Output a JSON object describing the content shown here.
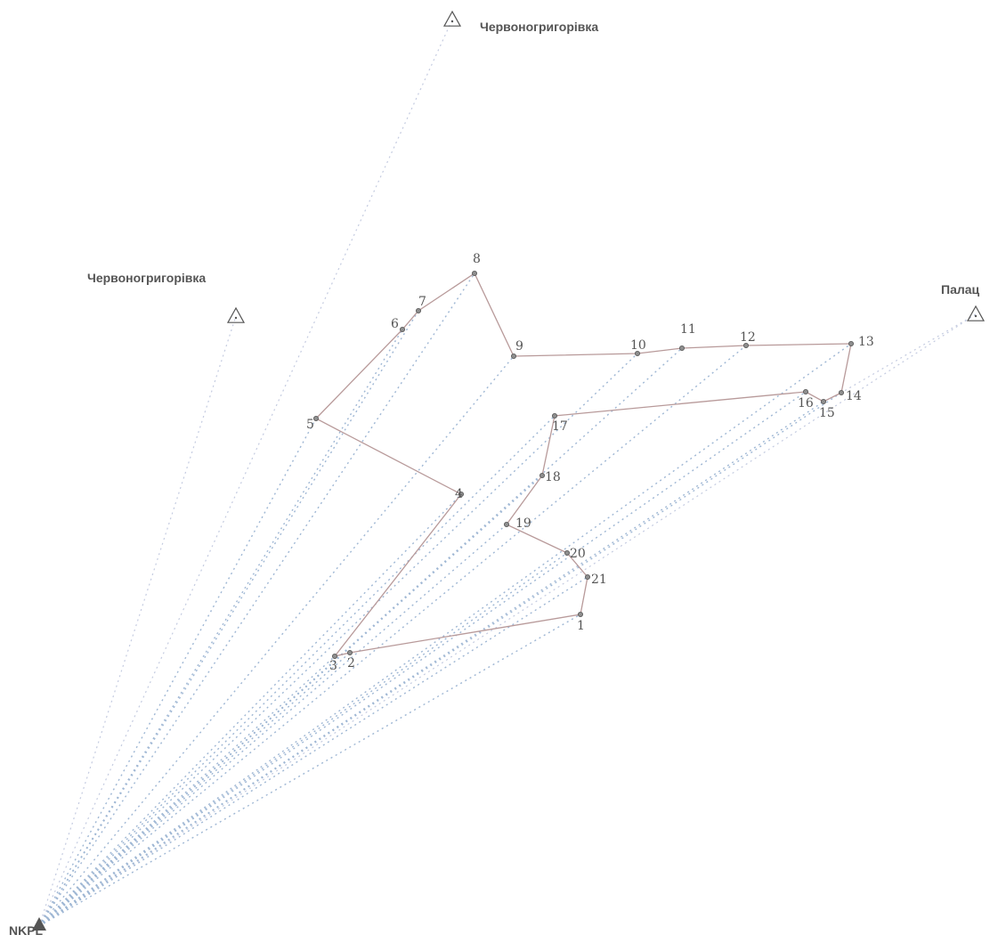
{
  "base_station": {
    "label": "NKPL"
  },
  "control_points": [
    {
      "id": "c1",
      "label": "Червоногригорівка"
    },
    {
      "id": "c2",
      "label": "Червоногригорівка"
    },
    {
      "id": "c3",
      "label": "Палац"
    }
  ],
  "traverse_points": [
    {
      "id": "p1",
      "label": "1"
    },
    {
      "id": "p2",
      "label": "2"
    },
    {
      "id": "p3",
      "label": "3"
    },
    {
      "id": "p4",
      "label": "4"
    },
    {
      "id": "p5",
      "label": "5"
    },
    {
      "id": "p6",
      "label": "6"
    },
    {
      "id": "p7",
      "label": "7"
    },
    {
      "id": "p8",
      "label": "8"
    },
    {
      "id": "p9",
      "label": "9"
    },
    {
      "id": "p10",
      "label": "10"
    },
    {
      "id": "p11",
      "label": "11"
    },
    {
      "id": "p12",
      "label": "12"
    },
    {
      "id": "p13",
      "label": "13"
    },
    {
      "id": "p14",
      "label": "14"
    },
    {
      "id": "p15",
      "label": "15"
    },
    {
      "id": "p16",
      "label": "16"
    },
    {
      "id": "p17",
      "label": "17"
    },
    {
      "id": "p18",
      "label": "18"
    },
    {
      "id": "p19",
      "label": "19"
    },
    {
      "id": "p20",
      "label": "20"
    },
    {
      "id": "p21",
      "label": "21"
    }
  ],
  "colors": {
    "ray": "#9fb7d4",
    "traverse": "#b89a9a",
    "text": "#555555"
  }
}
